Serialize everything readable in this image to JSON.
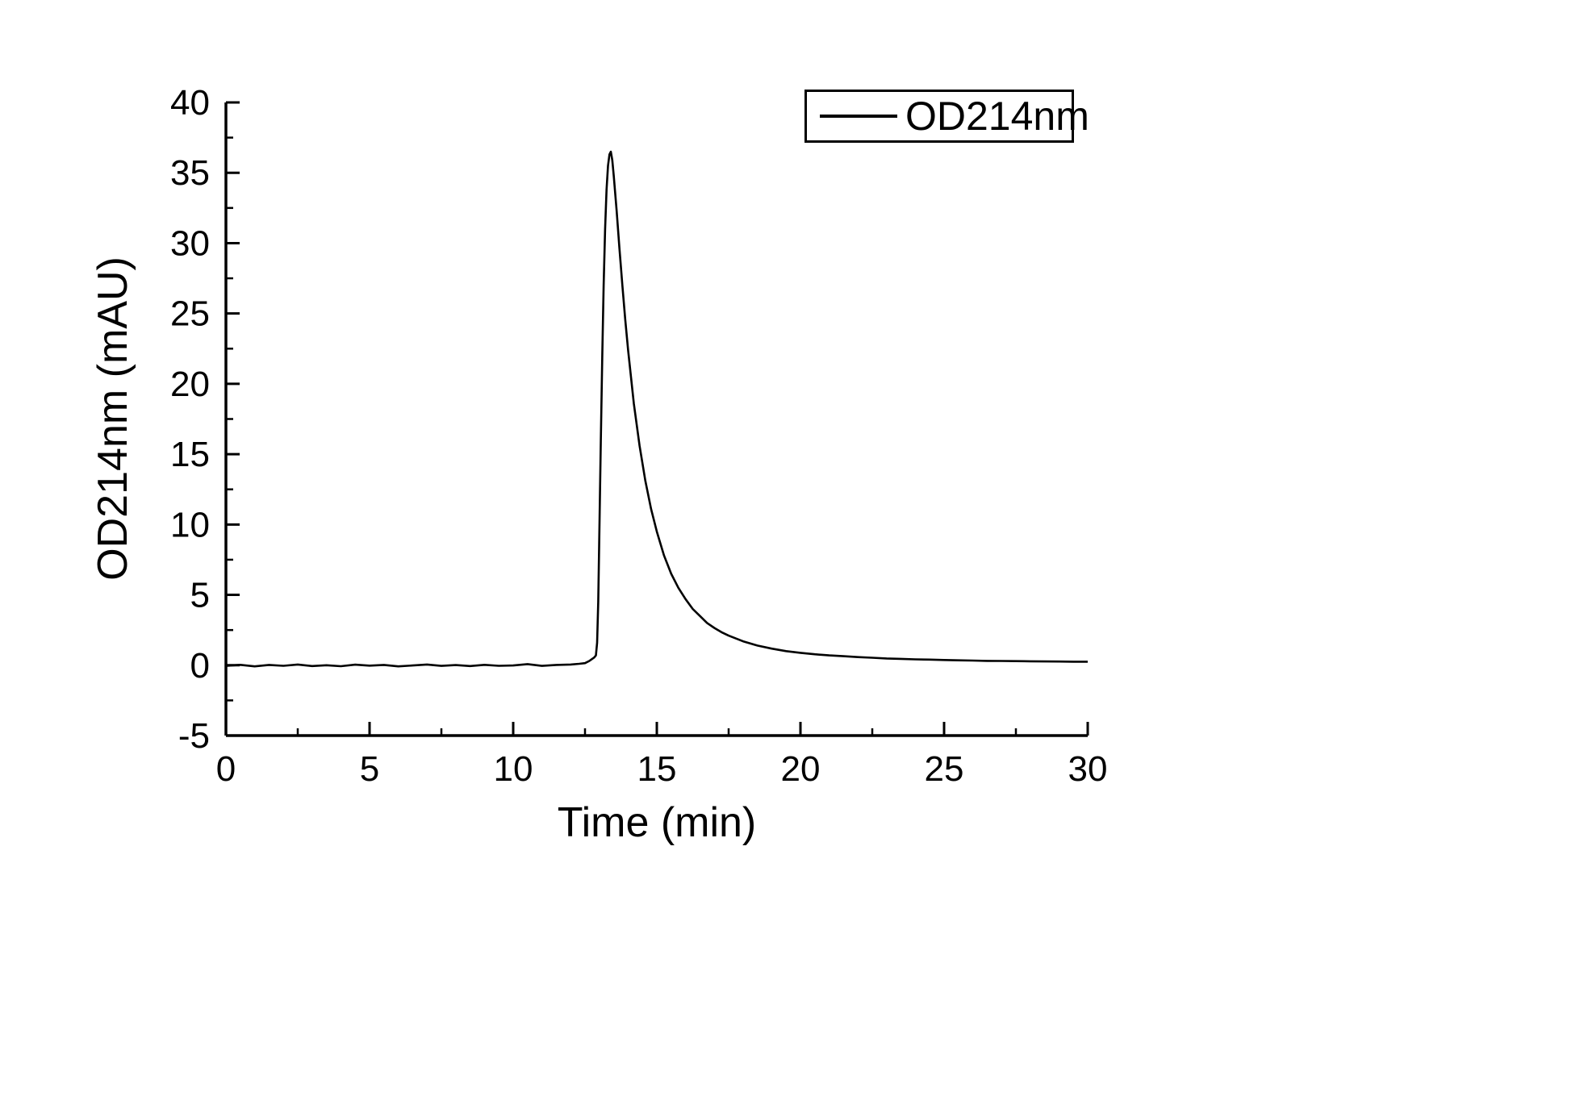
{
  "chart_data": {
    "type": "line",
    "title": "",
    "xlabel": "Time (min)",
    "ylabel": "OD214nm (mAU)",
    "xlim": [
      0,
      30
    ],
    "ylim": [
      -5,
      40
    ],
    "xticks": [
      0,
      5,
      10,
      15,
      20,
      25,
      30
    ],
    "yticks": [
      -5,
      0,
      5,
      10,
      15,
      20,
      25,
      30,
      35,
      40
    ],
    "grid": false,
    "line_color": "#000000",
    "legend": {
      "position": "top-right",
      "entries": [
        {
          "label": "OD214nm",
          "color": "#000000"
        }
      ]
    },
    "series": [
      {
        "name": "OD214nm",
        "color": "#000000",
        "x": [
          0,
          0.5,
          1,
          1.5,
          2,
          2.5,
          3,
          3.5,
          4,
          4.5,
          5,
          5.5,
          6,
          6.5,
          7,
          7.5,
          8,
          8.5,
          9,
          9.5,
          10,
          10.5,
          11,
          11.5,
          12,
          12.3,
          12.5,
          12.65,
          12.75,
          12.82,
          12.88,
          12.92,
          12.96,
          13.0,
          13.05,
          13.1,
          13.15,
          13.2,
          13.25,
          13.3,
          13.35,
          13.4,
          13.45,
          13.5,
          13.6,
          13.7,
          13.8,
          13.9,
          14.0,
          14.2,
          14.4,
          14.6,
          14.8,
          15.0,
          15.25,
          15.5,
          15.75,
          16.0,
          16.25,
          16.5,
          16.75,
          17.0,
          17.25,
          17.5,
          17.75,
          18.0,
          18.5,
          19.0,
          19.5,
          20.0,
          20.5,
          21.0,
          21.5,
          22.0,
          22.5,
          23.0,
          23.5,
          24.0,
          24.5,
          25.0,
          25.5,
          26.0,
          26.5,
          27.0,
          27.5,
          28.0,
          28.5,
          29.0,
          29.5,
          30.0
        ],
        "y": [
          -0.05,
          0.03,
          -0.08,
          0.02,
          -0.04,
          0.05,
          -0.06,
          0,
          -0.07,
          0.04,
          -0.03,
          0.02,
          -0.08,
          -0.02,
          0.05,
          -0.05,
          0.01,
          -0.06,
          0.03,
          -0.04,
          -0.02,
          0.08,
          -0.05,
          0.02,
          0.05,
          0.1,
          0.15,
          0.3,
          0.45,
          0.55,
          0.7,
          1.6,
          4.5,
          9.5,
          16,
          22,
          27,
          31,
          33.8,
          35.5,
          36.3,
          36.5,
          35.9,
          34.8,
          32.3,
          29.6,
          27.0,
          24.6,
          22.4,
          18.6,
          15.6,
          13.1,
          11.1,
          9.5,
          7.8,
          6.5,
          5.5,
          4.7,
          4.0,
          3.5,
          3.0,
          2.65,
          2.35,
          2.1,
          1.9,
          1.7,
          1.4,
          1.18,
          1.0,
          0.88,
          0.78,
          0.7,
          0.64,
          0.58,
          0.53,
          0.48,
          0.45,
          0.42,
          0.4,
          0.37,
          0.35,
          0.33,
          0.31,
          0.3,
          0.29,
          0.28,
          0.27,
          0.26,
          0.25,
          0.25
        ]
      }
    ]
  }
}
